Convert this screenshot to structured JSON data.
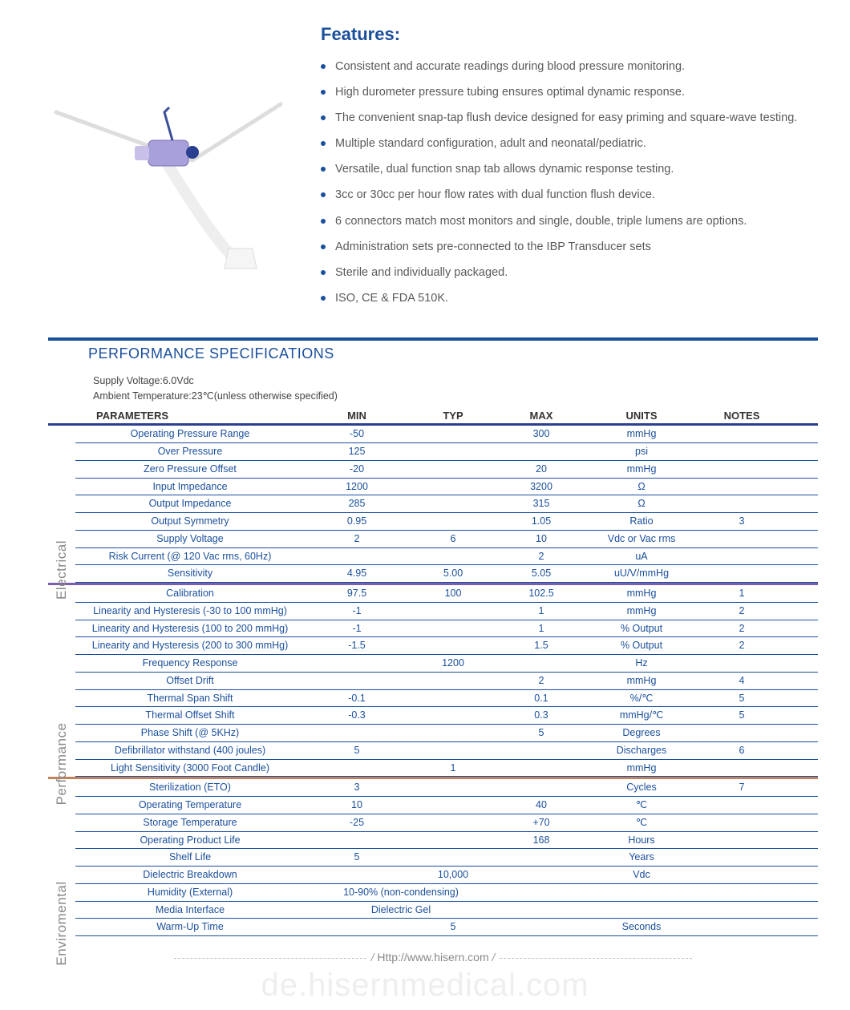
{
  "features": {
    "heading": "Features:",
    "items": [
      "Consistent and accurate readings during blood pressure monitoring.",
      "High durometer pressure tubing ensures optimal dynamic response.",
      "The convenient snap-tap flush device designed for easy priming and square-wave testing.",
      "Multiple standard configuration, adult and neonatal/pediatric.",
      "Versatile, dual function snap tab allows dynamic response testing.",
      "3cc or 30cc per hour flow rates with dual function flush device.",
      "6 connectors match most monitors and single, double, triple lumens are options.",
      "Administration sets pre-connected to the IBP Transducer sets",
      "Sterile and individually packaged.",
      "ISO, CE & FDA 510K."
    ]
  },
  "spec": {
    "title": "PERFORMANCE SPECIFICATIONS",
    "supply": "Supply Voltage:6.0Vdc",
    "ambient": "Ambient Temperature:23℃(unless otherwise specified)",
    "columns": {
      "param": "PARAMETERS",
      "min": "MIN",
      "typ": "TYP",
      "max": "MAX",
      "units": "UNITS",
      "notes": "NOTES"
    }
  },
  "sections": [
    {
      "label": "Electrical",
      "cls": "electrical",
      "rows": [
        {
          "param": "Operating Pressure Range",
          "min": "-50",
          "typ": "",
          "max": "300",
          "units": "mmHg",
          "notes": ""
        },
        {
          "param": "Over  Pressure",
          "min": "125",
          "typ": "",
          "max": "",
          "units": "psi",
          "notes": ""
        },
        {
          "param": "Zero Pressure Offset",
          "min": "-20",
          "typ": "",
          "max": "20",
          "units": "mmHg",
          "notes": ""
        },
        {
          "param": "Input Impedance",
          "min": "1200",
          "typ": "",
          "max": "3200",
          "units": "Ω",
          "notes": ""
        },
        {
          "param": "Output Impedance",
          "min": "285",
          "typ": "",
          "max": "315",
          "units": "Ω",
          "notes": ""
        },
        {
          "param": "Output Symmetry",
          "min": "0.95",
          "typ": "",
          "max": "1.05",
          "units": "Ratio",
          "notes": "3"
        },
        {
          "param": "Supply Voltage",
          "min": "2",
          "typ": "6",
          "max": "10",
          "units": "Vdc or Vac rms",
          "notes": ""
        },
        {
          "param": "Risk Current (@ 120 Vac rms, 60Hz)",
          "min": "",
          "typ": "",
          "max": "2",
          "units": "uA",
          "notes": ""
        },
        {
          "param": "Sensitivity",
          "min": "4.95",
          "typ": "5.00",
          "max": "5.05",
          "units": "uU/V/mmHg",
          "notes": ""
        }
      ]
    },
    {
      "label": "Performance",
      "cls": "performance",
      "rows": [
        {
          "param": "Calibration",
          "min": "97.5",
          "typ": "100",
          "max": "102.5",
          "units": "mmHg",
          "notes": "1"
        },
        {
          "param": "Linearity and Hysteresis (-30 to 100 mmHg)",
          "min": "-1",
          "typ": "",
          "max": "1",
          "units": "mmHg",
          "notes": "2"
        },
        {
          "param": "Linearity and Hysteresis (100 to 200 mmHg)",
          "min": "-1",
          "typ": "",
          "max": "1",
          "units": "% Output",
          "notes": "2"
        },
        {
          "param": "Linearity and Hysteresis (200 to 300 mmHg)",
          "min": "-1.5",
          "typ": "",
          "max": "1.5",
          "units": "% Output",
          "notes": "2"
        },
        {
          "param": "Frequency Response",
          "min": "",
          "typ": "1200",
          "max": "",
          "units": "Hz",
          "notes": ""
        },
        {
          "param": "Offset Drift",
          "min": "",
          "typ": "",
          "max": "2",
          "units": "mmHg",
          "notes": "4"
        },
        {
          "param": "Thermal Span Shift",
          "min": "-0.1",
          "typ": "",
          "max": "0.1",
          "units": "%/℃",
          "notes": "5"
        },
        {
          "param": "Thermal Offset Shift",
          "min": "-0.3",
          "typ": "",
          "max": "0.3",
          "units": "mmHg/℃",
          "notes": "5"
        },
        {
          "param": "Phase Shift (@ 5KHz)",
          "min": "",
          "typ": "",
          "max": "5",
          "units": "Degrees",
          "notes": ""
        },
        {
          "param": "Defibrillator withstand (400 joules)",
          "min": "5",
          "typ": "",
          "max": "",
          "units": "Discharges",
          "notes": "6"
        },
        {
          "param": "Light Sensitivity (3000 Foot Candle)",
          "min": "",
          "typ": "1",
          "max": "",
          "units": "mmHg",
          "notes": ""
        }
      ]
    },
    {
      "label": "Enviromental",
      "cls": "enviromental",
      "rows": [
        {
          "param": "Sterilization (ETO)",
          "min": "3",
          "typ": "",
          "max": "",
          "units": "Cycles",
          "notes": "7"
        },
        {
          "param": "Operating Temperature",
          "min": "10",
          "typ": "",
          "max": "40",
          "units": "℃",
          "notes": ""
        },
        {
          "param": "Storage Temperature",
          "min": "-25",
          "typ": "",
          "max": "+70",
          "units": "℃",
          "notes": ""
        },
        {
          "param": "Operating Product Life",
          "min": "",
          "typ": "",
          "max": "168",
          "units": "Hours",
          "notes": ""
        },
        {
          "param": "Shelf Life",
          "min": "5",
          "typ": "",
          "max": "",
          "units": "Years",
          "notes": ""
        },
        {
          "param": "Dielectric Breakdown",
          "min": "",
          "typ": "10,000",
          "max": "",
          "units": "Vdc",
          "notes": ""
        },
        {
          "param": "Humidity (External)",
          "wide": "10-90% (non-condensing)"
        },
        {
          "param": "Media Interface",
          "wide": "Dielectric Gel"
        },
        {
          "param": "Warm-Up Time",
          "min": "",
          "typ": "5",
          "max": "",
          "units": "Seconds",
          "notes": ""
        }
      ]
    }
  ],
  "footer": {
    "url": "Http://www.hisern.com"
  },
  "watermark": "de.hisernmedical.com",
  "colors": {
    "brand": "#1a4f9c"
  }
}
